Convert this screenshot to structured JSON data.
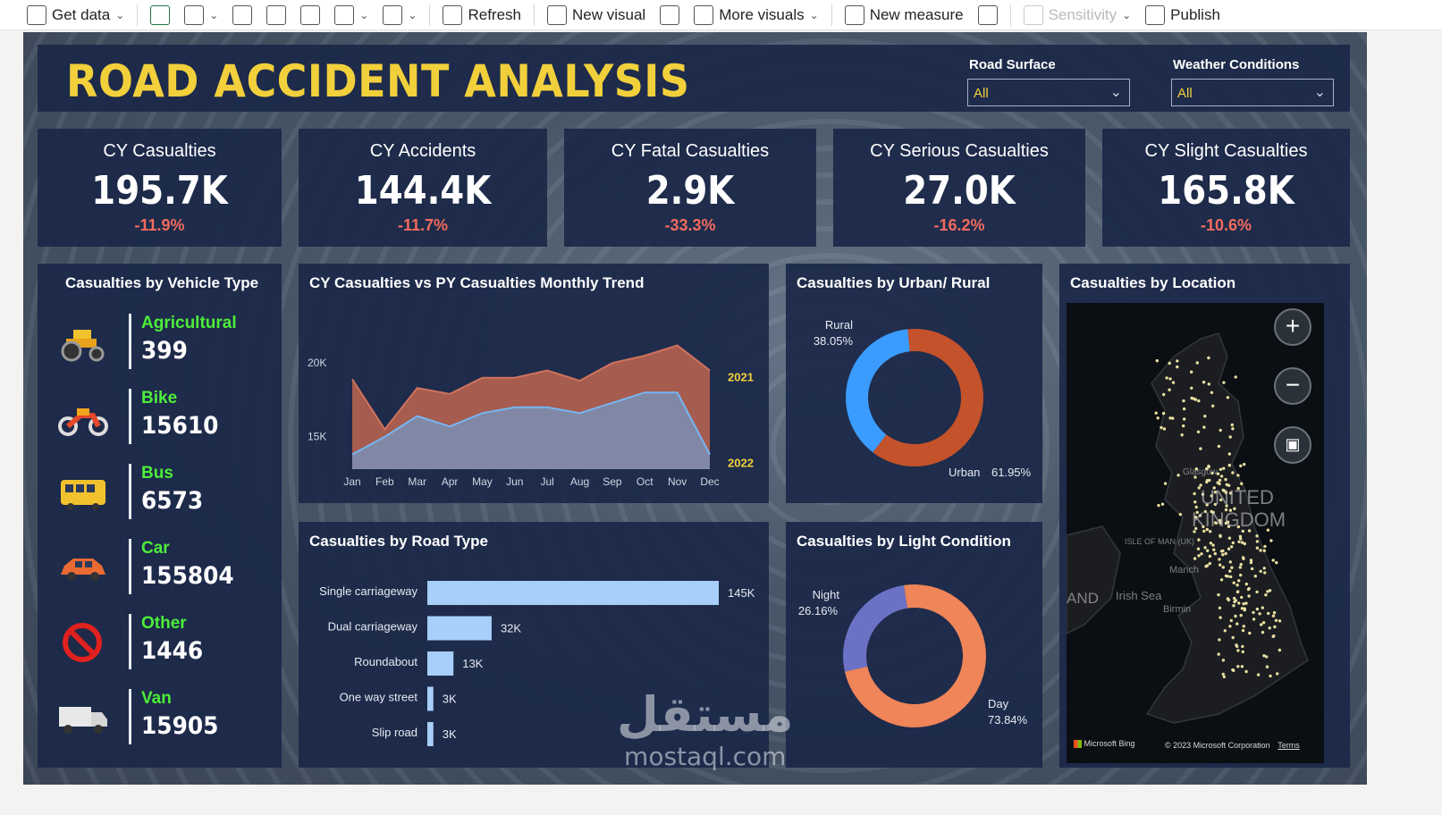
{
  "toolbar": {
    "items": [
      {
        "label": "Get data",
        "icon": "database-icon",
        "dropdown": true
      },
      {
        "label": "",
        "icon": "excel-icon"
      },
      {
        "label": "",
        "icon": "data-hub-icon",
        "dropdown": true
      },
      {
        "label": "",
        "icon": "sql-server-icon"
      },
      {
        "label": "",
        "icon": "enter-data-icon"
      },
      {
        "label": "",
        "icon": "dataverse-icon"
      },
      {
        "label": "",
        "icon": "recent-sources-icon",
        "dropdown": true
      },
      {
        "label": "",
        "icon": "transform-data-icon",
        "dropdown": true
      },
      {
        "label": "Refresh",
        "icon": "refresh-icon"
      },
      {
        "label": "New visual",
        "icon": "new-visual-icon"
      },
      {
        "label": "",
        "icon": "text-box-icon"
      },
      {
        "label": "More visuals",
        "icon": "more-visuals-icon",
        "dropdown": true
      },
      {
        "label": "New measure",
        "icon": "new-measure-icon"
      },
      {
        "label": "",
        "icon": "quick-measure-icon"
      },
      {
        "label": "Sensitivity",
        "icon": "sensitivity-icon",
        "dropdown": true,
        "disabled": true
      },
      {
        "label": "Publish",
        "icon": "publish-icon"
      }
    ]
  },
  "dashboard": {
    "title": "ROAD ACCIDENT ANALYSIS",
    "slicers": [
      {
        "label": "Road Surface",
        "value": "All"
      },
      {
        "label": "Weather Conditions",
        "value": "All"
      }
    ],
    "colors": {
      "title": "#f2d03c",
      "panel": "#1b2848",
      "negative": "#f26b5e",
      "vehicle_label": "#4ded3a"
    }
  },
  "kpis": [
    {
      "label": "CY Casualties",
      "value": "195.7K",
      "delta": "-11.9%"
    },
    {
      "label": "CY Accidents",
      "value": "144.4K",
      "delta": "-11.7%"
    },
    {
      "label": "CY Fatal Casualties",
      "value": "2.9K",
      "delta": "-33.3%"
    },
    {
      "label": "CY Serious Casualties",
      "value": "27.0K",
      "delta": "-16.2%"
    },
    {
      "label": "CY Slight Casualties",
      "value": "165.8K",
      "delta": "-10.6%"
    }
  ],
  "vehicle_panel": {
    "title": "Casualties by Vehicle Type",
    "items": [
      {
        "name": "Agricultural",
        "value": "399",
        "icon": "tractor-icon"
      },
      {
        "name": "Bike",
        "value": "15610",
        "icon": "motorbike-icon"
      },
      {
        "name": "Bus",
        "value": "6573",
        "icon": "bus-icon"
      },
      {
        "name": "Car",
        "value": "155804",
        "icon": "car-icon"
      },
      {
        "name": "Other",
        "value": "1446",
        "icon": "prohibited-icon"
      },
      {
        "name": "Van",
        "value": "15905",
        "icon": "van-icon"
      }
    ]
  },
  "map_panel": {
    "title": "Casualties by Location",
    "labels": [
      "UNITED",
      "KINGDOM",
      "ISLE OF MAN (UK)",
      "Manch",
      "Irish Sea",
      "Birmin",
      "AND",
      "Glasgow"
    ],
    "footer_brand": "Microsoft Bing",
    "copyright": "© 2023 Microsoft Corporation",
    "terms": "Terms"
  },
  "watermark": {
    "arabic": "مستقل",
    "latin": "mostaql.com"
  },
  "chart_data": [
    {
      "type": "area",
      "title": "CY Casualties vs PY Casualties Monthly Trend",
      "categories": [
        "Jan",
        "Feb",
        "Mar",
        "Apr",
        "May",
        "Jun",
        "Jul",
        "Aug",
        "Sep",
        "Oct",
        "Nov",
        "Dec"
      ],
      "series": [
        {
          "name": "2021",
          "color": "#b5624f",
          "values": [
            18900,
            15500,
            18300,
            17900,
            19000,
            19000,
            19500,
            18800,
            20000,
            20500,
            21200,
            19500
          ]
        },
        {
          "name": "2022",
          "color": "#7a8fb5",
          "values": [
            13800,
            15000,
            16400,
            15700,
            16600,
            17000,
            17000,
            16600,
            17300,
            18000,
            18000,
            13800
          ]
        }
      ],
      "ytick_labels": [
        "15K",
        "20K"
      ],
      "yticks": [
        15000,
        20000
      ],
      "ylim": [
        12800,
        22500
      ]
    },
    {
      "type": "pie",
      "title": "Casualties by Urban/ Rural",
      "labels": [
        "Rural",
        "Urban"
      ],
      "values": [
        38.05,
        61.95
      ],
      "value_labels": [
        "38.05%",
        "61.95%"
      ],
      "colors": [
        "#3b9cff",
        "#c4522a"
      ],
      "donut": true
    },
    {
      "type": "bar",
      "orientation": "horizontal",
      "title": "Casualties by Road Type",
      "categories": [
        "Single carriageway",
        "Dual carriageway",
        "Roundabout",
        "One way street",
        "Slip road"
      ],
      "values": [
        145000,
        32000,
        13000,
        3000,
        3000
      ],
      "value_labels": [
        "145K",
        "32K",
        "13K",
        "3K",
        "3K"
      ],
      "color": "#a8cff9"
    },
    {
      "type": "pie",
      "title": "Casualties by Light Condition",
      "labels": [
        "Night",
        "Day"
      ],
      "values": [
        26.16,
        73.84
      ],
      "value_labels": [
        "26.16%",
        "73.84%"
      ],
      "colors": [
        "#6b72c6",
        "#ef8559"
      ],
      "donut": true
    },
    {
      "type": "scatter",
      "title": "Casualties by Location",
      "note": "point markers of accident locations across Great Britain"
    }
  ]
}
